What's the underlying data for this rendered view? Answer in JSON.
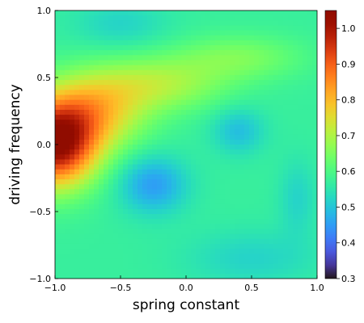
{
  "chart_data": {
    "type": "heatmap",
    "title": "",
    "xlabel": "spring constant",
    "ylabel": "driving frequency",
    "xlim": [
      -1.0,
      1.0
    ],
    "ylim": [
      -1.0,
      1.0
    ],
    "x_ticks": [
      -1.0,
      -0.5,
      0.0,
      0.5,
      1.0
    ],
    "x_tick_labels": [
      "−1.0",
      "−0.5",
      "0.0",
      "0.5",
      "1.0"
    ],
    "y_ticks": [
      -1.0,
      -0.5,
      0.0,
      0.5,
      1.0
    ],
    "y_tick_labels": [
      "−1.0",
      "−0.5",
      "0.0",
      "0.5",
      "1.0"
    ],
    "colorbar": {
      "colormap": "turbo",
      "range": [
        0.3,
        1.05
      ],
      "ticks": [
        0.3,
        0.4,
        0.5,
        0.6,
        0.7,
        0.8,
        0.9,
        1.0
      ],
      "tick_labels": [
        "0.3",
        "0.4",
        "0.5",
        "0.6",
        "0.7",
        "0.8",
        "0.9",
        "1.0"
      ]
    },
    "grid": false,
    "legend": "none",
    "background_level": 0.57,
    "features": [
      {
        "x": -1.0,
        "y": 0.0,
        "amplitude": 0.45,
        "sigma_x": 0.22,
        "sigma_y": 0.22
      },
      {
        "x": -0.7,
        "y": 0.25,
        "amplitude": 0.2,
        "sigma_x": 0.28,
        "sigma_y": 0.2
      },
      {
        "x": -0.2,
        "y": 0.45,
        "amplitude": 0.12,
        "sigma_x": 0.35,
        "sigma_y": 0.14
      },
      {
        "x": 0.4,
        "y": 0.65,
        "amplitude": 0.08,
        "sigma_x": 0.35,
        "sigma_y": 0.12
      },
      {
        "x": -0.25,
        "y": -0.3,
        "amplitude": -0.12,
        "sigma_x": 0.18,
        "sigma_y": 0.15
      },
      {
        "x": 0.4,
        "y": 0.1,
        "amplitude": -0.08,
        "sigma_x": 0.14,
        "sigma_y": 0.12
      },
      {
        "x": -0.5,
        "y": 0.9,
        "amplitude": -0.05,
        "sigma_x": 0.25,
        "sigma_y": 0.12
      },
      {
        "x": 0.5,
        "y": -0.85,
        "amplitude": -0.05,
        "sigma_x": 0.35,
        "sigma_y": 0.15
      },
      {
        "x": 0.85,
        "y": -0.4,
        "amplitude": -0.05,
        "sigma_x": 0.1,
        "sigma_y": 0.2
      }
    ]
  }
}
